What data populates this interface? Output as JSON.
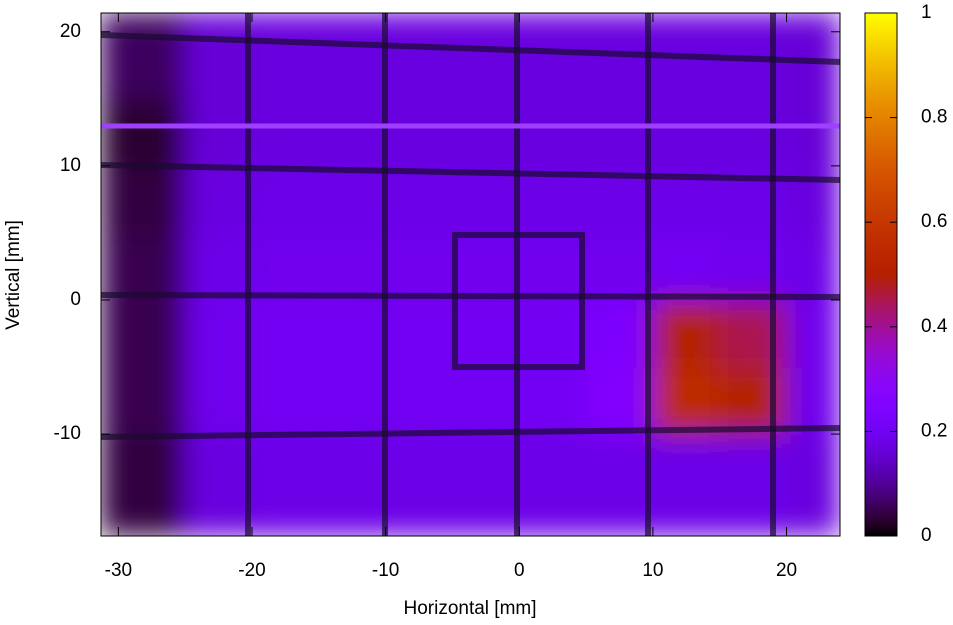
{
  "chart_data": {
    "type": "heatmap",
    "xlabel": "Horizontal [mm]",
    "ylabel": "Vertical [mm]",
    "x_edges": [
      -31.3,
      -25,
      -20,
      -15,
      -10,
      -5,
      0,
      5,
      10,
      15,
      20,
      24
    ],
    "y_edges": [
      -17.6,
      -10,
      -5,
      0,
      5,
      10,
      15,
      21.4
    ],
    "z": [
      [
        0.04,
        0.17,
        0.18,
        0.18,
        0.18,
        0.18,
        0.18,
        0.18,
        0.18,
        0.18,
        0.17
      ],
      [
        0.05,
        0.19,
        0.2,
        0.2,
        0.2,
        0.2,
        0.2,
        0.26,
        0.55,
        0.5,
        0.19
      ],
      [
        0.05,
        0.19,
        0.2,
        0.2,
        0.2,
        0.2,
        0.2,
        0.24,
        0.5,
        0.45,
        0.19
      ],
      [
        0.05,
        0.18,
        0.19,
        0.19,
        0.19,
        0.19,
        0.19,
        0.19,
        0.2,
        0.19,
        0.18
      ],
      [
        0.04,
        0.17,
        0.18,
        0.18,
        0.18,
        0.18,
        0.18,
        0.18,
        0.18,
        0.18,
        0.17
      ],
      [
        0.03,
        0.16,
        0.17,
        0.17,
        0.17,
        0.17,
        0.17,
        0.17,
        0.17,
        0.17,
        0.16
      ],
      [
        0.06,
        0.16,
        0.17,
        0.17,
        0.17,
        0.17,
        0.17,
        0.17,
        0.17,
        0.17,
        0.16
      ]
    ],
    "xlim": [
      -31.3,
      24
    ],
    "ylim": [
      -17.6,
      21.4
    ],
    "xticks": [
      -30,
      -20,
      -10,
      0,
      10,
      20
    ],
    "yticks": [
      -10,
      0,
      10,
      20
    ],
    "zlim": [
      0,
      1
    ],
    "zticks": [
      0,
      0.2,
      0.4,
      0.6,
      0.8,
      1
    ]
  }
}
